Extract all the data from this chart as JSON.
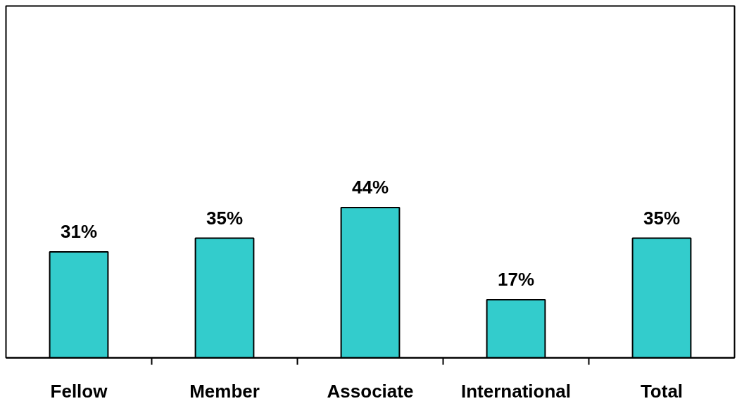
{
  "chart_data": {
    "type": "bar",
    "categories": [
      "Fellow",
      "Member",
      "Associate",
      "International",
      "Total"
    ],
    "values": [
      31,
      35,
      44,
      17,
      35
    ],
    "value_labels": [
      "31%",
      "35%",
      "44%",
      "17%",
      "35%"
    ],
    "color": "#33cccc",
    "ylim": [
      0,
      103
    ],
    "grid": false
  }
}
